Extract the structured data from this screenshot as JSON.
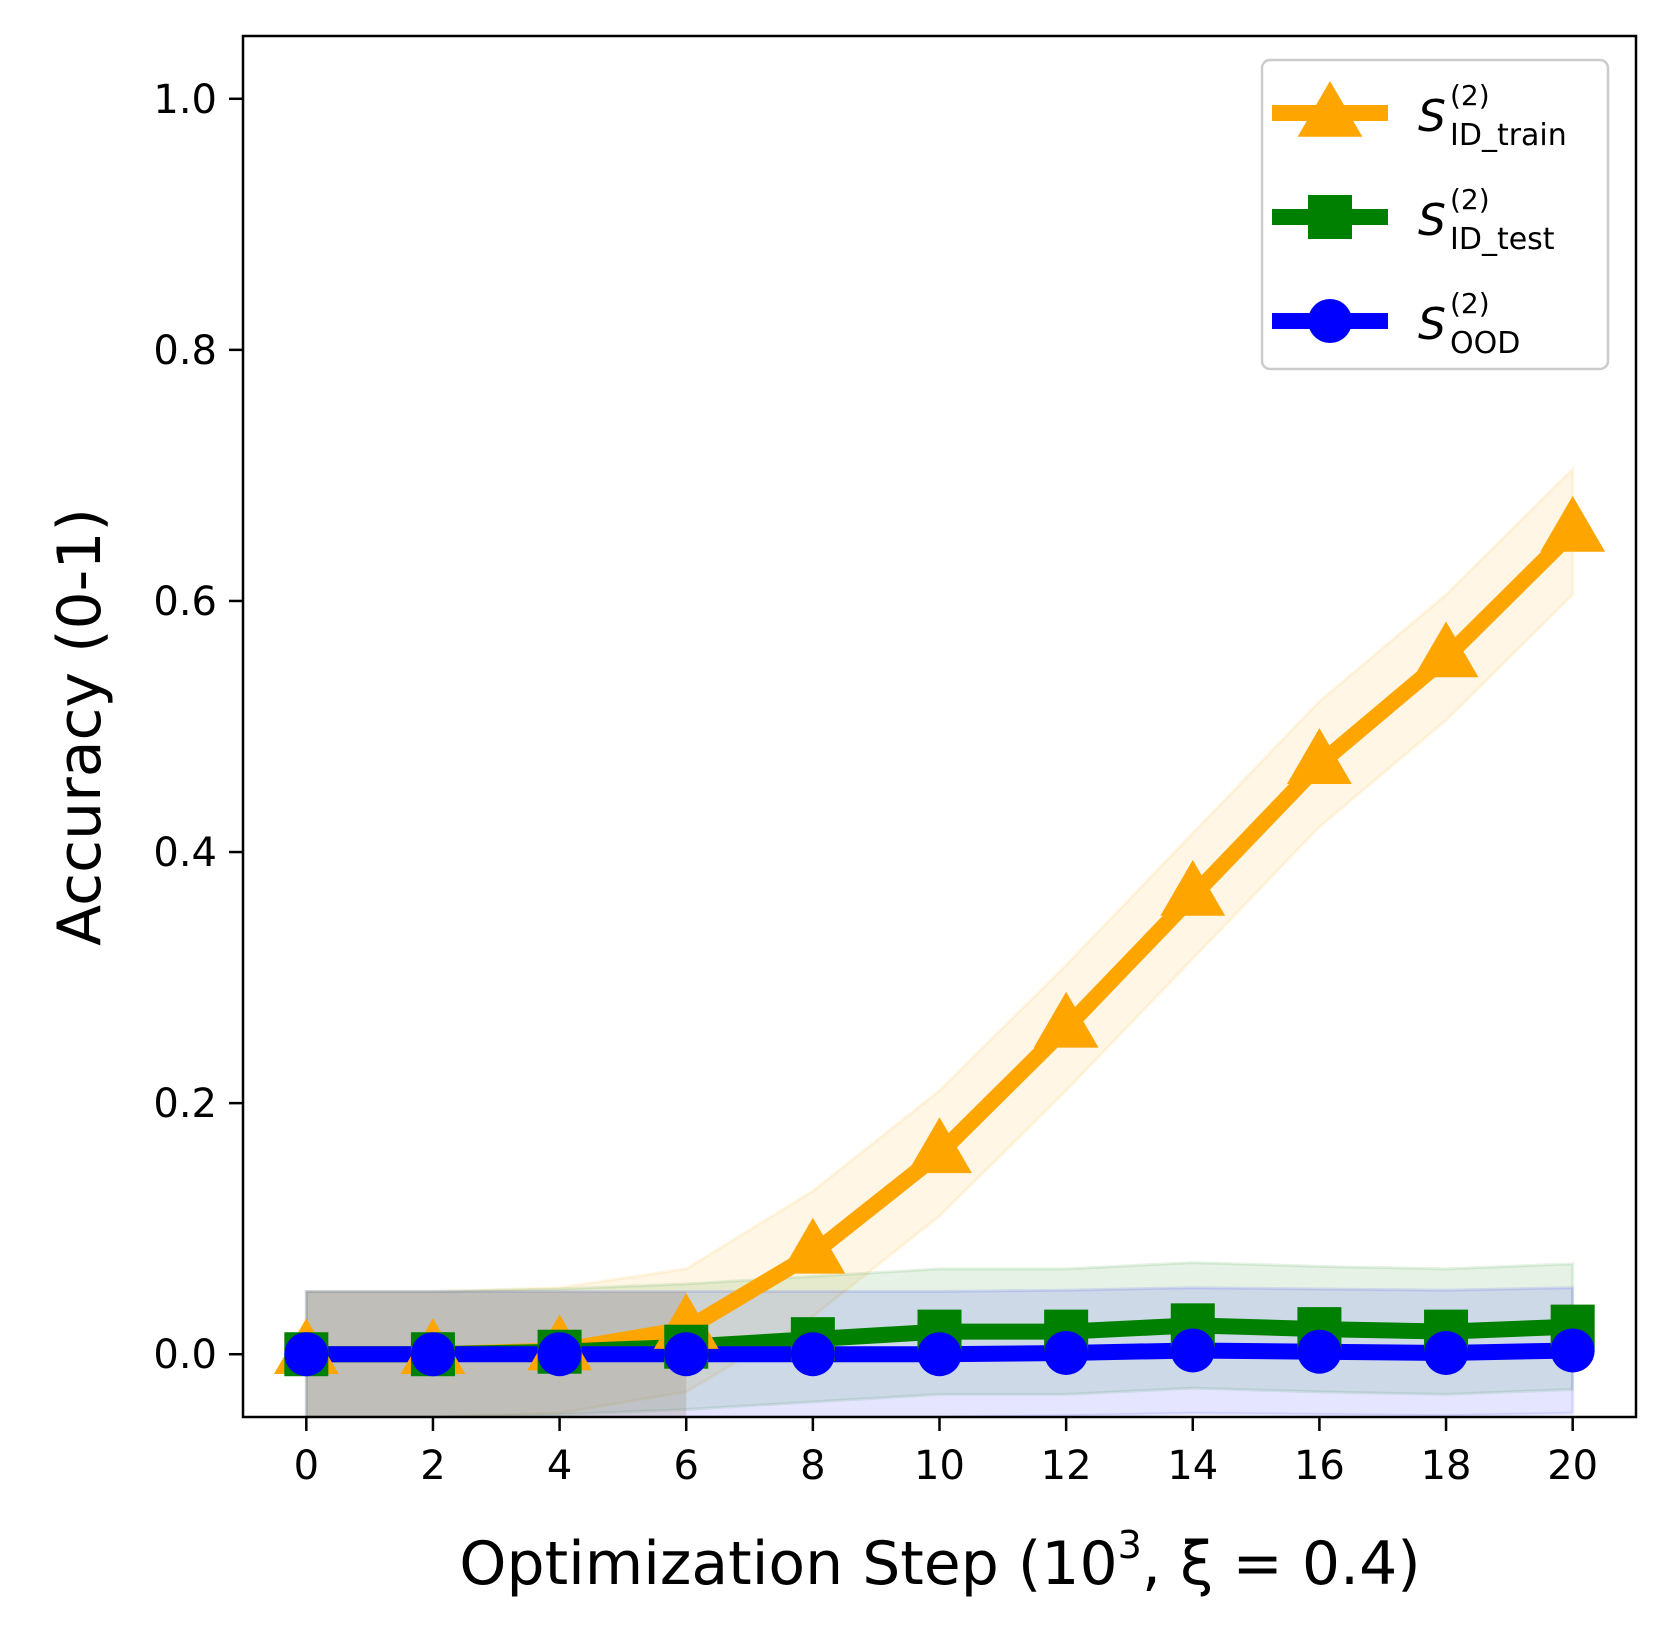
{
  "chart_data": {
    "type": "line",
    "title": "",
    "xlabel": "Optimization Step (10³, ξ = 0.4)",
    "xlabel_parts": {
      "prefix": "Optimization Step (10",
      "sup": "3",
      "suffix": ", ξ = 0.4)"
    },
    "ylabel": "Accuracy (0-1)",
    "xlim": [
      -1,
      21
    ],
    "ylim": [
      -0.05,
      1.05
    ],
    "x": [
      0,
      2,
      4,
      6,
      8,
      10,
      12,
      14,
      16,
      18,
      20
    ],
    "x_ticks": [
      0,
      2,
      4,
      6,
      8,
      10,
      12,
      14,
      16,
      18,
      20
    ],
    "x_tick_labels": [
      "0",
      "2",
      "4",
      "6",
      "8",
      "10",
      "12",
      "14",
      "16",
      "18",
      "20"
    ],
    "y_ticks": [
      0.0,
      0.2,
      0.4,
      0.6,
      0.8,
      1.0
    ],
    "y_tick_labels": [
      "0.0",
      "0.2",
      "0.4",
      "0.6",
      "0.8",
      "1.0"
    ],
    "grid": false,
    "legend_position": "top-right",
    "series": [
      {
        "name": "S(2) ID_train",
        "label_main": "S",
        "label_sup": "(2)",
        "label_sub": "ID_train",
        "color": "#ffa500",
        "marker": "triangle",
        "values": [
          0.0,
          0.0,
          0.003,
          0.02,
          0.08,
          0.16,
          0.26,
          0.365,
          0.47,
          0.555,
          0.655
        ],
        "band_low": [
          -0.05,
          -0.05,
          -0.047,
          -0.03,
          0.03,
          0.11,
          0.21,
          0.315,
          0.42,
          0.505,
          0.605
        ],
        "band_high": [
          0.05,
          0.05,
          0.053,
          0.068,
          0.13,
          0.21,
          0.31,
          0.415,
          0.52,
          0.605,
          0.705
        ]
      },
      {
        "name": "S(2) ID_test",
        "label_main": "S",
        "label_sup": "(2)",
        "label_sub": "ID_test",
        "color": "#008000",
        "marker": "square",
        "values": [
          0.0,
          0.0,
          0.002,
          0.006,
          0.012,
          0.018,
          0.018,
          0.023,
          0.02,
          0.018,
          0.022
        ],
        "band_low": [
          -0.05,
          -0.05,
          -0.048,
          -0.044,
          -0.038,
          -0.032,
          -0.032,
          -0.027,
          -0.03,
          -0.032,
          -0.028
        ],
        "band_high": [
          0.05,
          0.05,
          0.052,
          0.056,
          0.062,
          0.068,
          0.068,
          0.073,
          0.07,
          0.068,
          0.072
        ]
      },
      {
        "name": "S(2) OOD",
        "label_main": "S",
        "label_sup": "(2)",
        "label_sub": "OOD",
        "color": "#0000ff",
        "marker": "circle",
        "values": [
          0.0,
          0.0,
          0.0,
          0.0,
          0.0,
          0.0,
          0.001,
          0.003,
          0.002,
          0.001,
          0.003
        ],
        "band_low": [
          -0.05,
          -0.05,
          -0.05,
          -0.05,
          -0.05,
          -0.05,
          -0.049,
          -0.047,
          -0.048,
          -0.049,
          -0.047
        ],
        "band_high": [
          0.05,
          0.05,
          0.05,
          0.05,
          0.05,
          0.05,
          0.051,
          0.053,
          0.052,
          0.051,
          0.053
        ]
      }
    ]
  }
}
